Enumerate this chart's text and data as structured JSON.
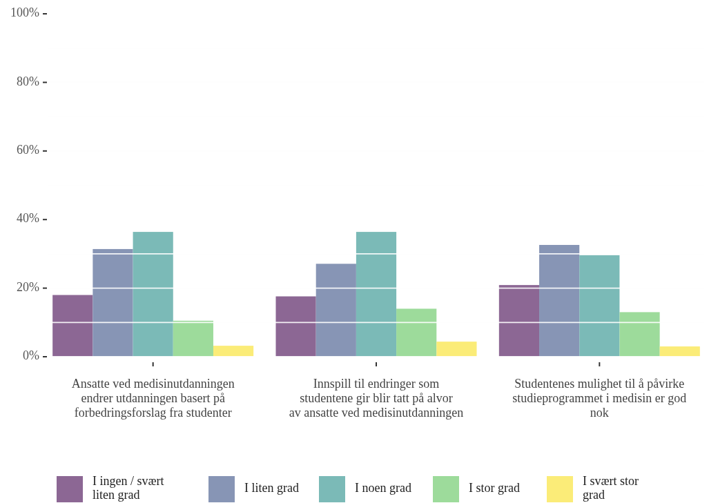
{
  "chart_data": {
    "type": "bar",
    "categories": [
      "Ansatte ved medisinutdanningen endrer utdanningen basert på forbedringsforslag fra studenter",
      "Innspill til endringer som studentene gir blir tatt på alvor av ansatte ved medisinutdanningen",
      "Studentenes mulighet til å påvirke studieprogrammet i medisin er god nok"
    ],
    "series": [
      {
        "name": "I ingen / svært liten grad",
        "color": "#8c6794",
        "values": [
          18.0,
          17.6,
          20.9
        ]
      },
      {
        "name": "I liten grad",
        "color": "#8795b5",
        "values": [
          31.4,
          27.1,
          32.6
        ]
      },
      {
        "name": "I noen grad",
        "color": "#7bbab7",
        "values": [
          36.4,
          36.4,
          29.6
        ]
      },
      {
        "name": "I stor grad",
        "color": "#9ddb9b",
        "values": [
          10.5,
          14.0,
          13.0
        ]
      },
      {
        "name": "I svært stor grad",
        "color": "#fbec78",
        "values": [
          3.2,
          4.4,
          3.0
        ]
      }
    ],
    "ylim": [
      0,
      100
    ],
    "yticks": [
      {
        "value": 0,
        "label": "0%"
      },
      {
        "value": 20,
        "label": "20%"
      },
      {
        "value": 40,
        "label": "40%"
      },
      {
        "value": 60,
        "label": "60%"
      },
      {
        "value": 80,
        "label": "80%"
      },
      {
        "value": 100,
        "label": "100%"
      }
    ],
    "grid": true,
    "legend": "bottom"
  }
}
